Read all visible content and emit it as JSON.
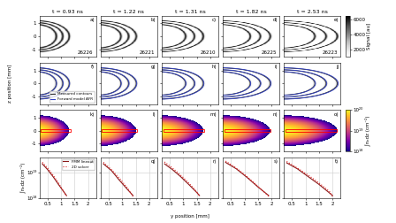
{
  "figure": {
    "xlabel": "y position [mm]",
    "ylabel": "z position [mm]"
  },
  "chart_data": [
    {
      "type": "image",
      "title": "t = 0.93 ns",
      "panel_label": "a)",
      "annotation": "26226",
      "xlim": [
        0.2,
        2.3
      ],
      "ylim": [
        -1.6,
        1.6
      ],
      "xticks": [
        0.5,
        1,
        1.5,
        2
      ],
      "yticks": [
        -1,
        0,
        1
      ],
      "tick_labels": "y"
    },
    {
      "type": "image",
      "title": "t = 1.22 ns",
      "panel_label": "b)",
      "annotation": "26221",
      "xlim": [
        0.2,
        2.3
      ],
      "ylim": [
        -1.6,
        1.6
      ],
      "xticks": [
        0.5,
        1,
        1.5,
        2
      ],
      "yticks": [
        -1,
        0,
        1
      ],
      "tick_labels": false
    },
    {
      "type": "image",
      "title": "t = 1.31 ns",
      "panel_label": "c)",
      "annotation": "26210",
      "xlim": [
        0.2,
        2.3
      ],
      "ylim": [
        -1.6,
        1.6
      ],
      "xticks": [
        0.5,
        1,
        1.5,
        2
      ],
      "yticks": [
        -1,
        0,
        1
      ],
      "tick_labels": false
    },
    {
      "type": "image",
      "title": "t = 1.82 ns",
      "panel_label": "d)",
      "annotation": "26225",
      "xlim": [
        0.2,
        2.3
      ],
      "ylim": [
        -1.6,
        1.6
      ],
      "xticks": [
        0.5,
        1,
        1.5,
        2
      ],
      "yticks": [
        -1,
        0,
        1
      ],
      "tick_labels": false
    },
    {
      "type": "image",
      "title": "t = 2.53 ns",
      "panel_label": "e)",
      "annotation": "26223",
      "xlim": [
        0.2,
        2.3
      ],
      "ylim": [
        -1.6,
        1.6
      ],
      "xticks": [
        0.5,
        1,
        1.5,
        2
      ],
      "yticks": [
        -1,
        0,
        1
      ],
      "tick_labels": false,
      "colorbar": {
        "label": "Signal [au]",
        "range": [
          1000,
          6500
        ],
        "ticks": [
          2000,
          4000,
          6000
        ]
      }
    },
    {
      "type": "contour",
      "panel_label": "f)",
      "xlim": [
        0.2,
        2.3
      ],
      "ylim": [
        -1.6,
        1.6
      ],
      "xticks": [
        0.5,
        1,
        1.5,
        2
      ],
      "yticks": [
        -1,
        0,
        1
      ],
      "tick_labels": "y",
      "legend": "lower right",
      "series": [
        {
          "name": "Measured contours",
          "color": "#333333",
          "line_style": "solid"
        },
        {
          "name": "Forward model AFR",
          "color": "#2f3fc8",
          "line_style": "solid"
        }
      ]
    },
    {
      "type": "contour",
      "panel_label": "g)",
      "xlim": [
        0.2,
        2.3
      ],
      "ylim": [
        -1.6,
        1.6
      ],
      "xticks": [
        0.5,
        1,
        1.5,
        2
      ],
      "yticks": [
        -1,
        0,
        1
      ],
      "tick_labels": false,
      "series": [
        {
          "name": "Measured contours",
          "color": "#333333",
          "line_style": "solid"
        },
        {
          "name": "Forward model AFR",
          "color": "#2f3fc8",
          "line_style": "solid"
        }
      ]
    },
    {
      "type": "contour",
      "panel_label": "h)",
      "xlim": [
        0.2,
        2.3
      ],
      "ylim": [
        -1.6,
        1.6
      ],
      "xticks": [
        0.5,
        1,
        1.5,
        2
      ],
      "yticks": [
        -1,
        0,
        1
      ],
      "tick_labels": false,
      "series": [
        {
          "name": "Measured contours",
          "color": "#333333",
          "line_style": "solid"
        },
        {
          "name": "Forward model AFR",
          "color": "#2f3fc8",
          "line_style": "solid"
        }
      ]
    },
    {
      "type": "contour",
      "panel_label": "i)",
      "xlim": [
        0.2,
        2.3
      ],
      "ylim": [
        -1.6,
        1.6
      ],
      "xticks": [
        0.5,
        1,
        1.5,
        2
      ],
      "yticks": [
        -1,
        0,
        1
      ],
      "tick_labels": false,
      "series": [
        {
          "name": "Measured contours",
          "color": "#333333",
          "line_style": "solid"
        },
        {
          "name": "Forward model AFR",
          "color": "#2f3fc8",
          "line_style": "solid"
        }
      ]
    },
    {
      "type": "contour",
      "panel_label": "j)",
      "xlim": [
        0.2,
        2.3
      ],
      "ylim": [
        -1.6,
        1.6
      ],
      "xticks": [
        0.5,
        1,
        1.5,
        2
      ],
      "yticks": [
        -1,
        0,
        1
      ],
      "tick_labels": false,
      "series": [
        {
          "name": "Measured contours",
          "color": "#333333",
          "line_style": "solid"
        },
        {
          "name": "Forward model AFR",
          "color": "#2f3fc8",
          "line_style": "solid"
        }
      ]
    },
    {
      "type": "map",
      "panel_label": "k)",
      "xlim": [
        0.2,
        2.3
      ],
      "ylim": [
        -1.6,
        1.6
      ],
      "xticks": [
        0.5,
        1,
        1.5,
        2
      ],
      "yticks": [
        -1,
        0,
        1
      ],
      "tick_labels": "y"
    },
    {
      "type": "map",
      "panel_label": "l)",
      "xlim": [
        0.2,
        2.3
      ],
      "ylim": [
        -1.6,
        1.6
      ],
      "xticks": [
        0.5,
        1,
        1.5,
        2
      ],
      "yticks": [
        -1,
        0,
        1
      ],
      "tick_labels": false
    },
    {
      "type": "map",
      "panel_label": "m)",
      "xlim": [
        0.2,
        2.3
      ],
      "ylim": [
        -1.6,
        1.6
      ],
      "xticks": [
        0.5,
        1,
        1.5,
        2
      ],
      "yticks": [
        -1,
        0,
        1
      ],
      "tick_labels": false
    },
    {
      "type": "map",
      "panel_label": "n)",
      "xlim": [
        0.2,
        2.3
      ],
      "ylim": [
        -1.6,
        1.6
      ],
      "xticks": [
        0.5,
        1,
        1.5,
        2
      ],
      "yticks": [
        -1,
        0,
        1
      ],
      "tick_labels": false
    },
    {
      "type": "map",
      "panel_label": "o)",
      "xlim": [
        0.2,
        2.3
      ],
      "ylim": [
        -1.6,
        1.6
      ],
      "xticks": [
        0.5,
        1,
        1.5,
        2
      ],
      "yticks": [
        -1,
        0,
        1
      ],
      "tick_labels": false,
      "colorbar": {
        "label": "∫nₑdz (cm⁻²)",
        "log": true,
        "range": [
          1e+18,
          1e+20
        ],
        "ticks": [
          {
            "value": 1e+18,
            "label": "10¹⁸"
          },
          {
            "value": 1e+19,
            "label": "10¹⁹"
          },
          {
            "value": 1e+20,
            "label": "10²⁰"
          }
        ]
      }
    },
    {
      "type": "line",
      "panel_label": "p)",
      "ylabel": "∫nₑdz (cm⁻²)",
      "log": "y",
      "grid": true,
      "legend": "upper right",
      "xlim": [
        0.2,
        2.3
      ],
      "ylim": [
        1e+18,
        4e+19
      ],
      "xticks": [
        0.5,
        1,
        1.5,
        2
      ],
      "yticks": [
        {
          "value": 1e+18,
          "label": "10¹⁸"
        },
        {
          "value": 1e+19,
          "label": "10¹⁹"
        }
      ],
      "tick_labels": true,
      "x": [
        0.3,
        0.5,
        0.7,
        0.9,
        1.1,
        1.2
      ],
      "series": [
        {
          "name": "FMM lineout",
          "color": "#8b1a1a",
          "line_style": "solid",
          "values": [
            2.2e+19,
            1.3e+19,
            7e+18,
            3.5e+18,
            1.8e+18,
            1.3e+18
          ]
        },
        {
          "name": "2D solver",
          "color": "#e02020",
          "line_style": "dotted",
          "values": [
            2.5e+19,
            1.5e+19,
            8e+18,
            4e+18,
            1.8e+18,
            1.2e+18
          ]
        }
      ]
    },
    {
      "type": "line",
      "panel_label": "q)",
      "log": "y",
      "grid": true,
      "xlim": [
        0.2,
        2.3
      ],
      "ylim": [
        1e+18,
        4e+19
      ],
      "xticks": [
        0.5,
        1,
        1.5,
        2
      ],
      "yticks": [
        {
          "value": 1e+18,
          "label": "10¹⁸"
        },
        {
          "value": 1e+19,
          "label": "10¹⁹"
        }
      ],
      "tick_labels": "x",
      "x": [
        0.3,
        0.6,
        0.9,
        1.2,
        1.4
      ],
      "series": [
        {
          "name": "FMM lineout",
          "color": "#8b1a1a",
          "line_style": "solid",
          "values": [
            2.2e+19,
            1.2e+19,
            5e+18,
            2.2e+18,
            1.3e+18
          ]
        },
        {
          "name": "2D solver",
          "color": "#e02020",
          "line_style": "dotted",
          "values": [
            2.5e+19,
            1.3e+19,
            6e+18,
            2.5e+18,
            1.2e+18
          ]
        }
      ]
    },
    {
      "type": "line",
      "panel_label": "r)",
      "log": "y",
      "grid": true,
      "xlim": [
        0.2,
        2.3
      ],
      "ylim": [
        1e+18,
        4e+19
      ],
      "xticks": [
        0.5,
        1,
        1.5,
        2
      ],
      "yticks": [
        {
          "value": 1e+18,
          "label": "10¹⁸"
        },
        {
          "value": 1e+19,
          "label": "10¹⁹"
        }
      ],
      "tick_labels": "x",
      "x": [
        0.3,
        0.6,
        0.9,
        1.2,
        1.5,
        1.6
      ],
      "series": [
        {
          "name": "FMM lineout",
          "color": "#8b1a1a",
          "line_style": "solid",
          "values": [
            2.2e+19,
            1.3e+19,
            7e+18,
            3.5e+18,
            1.7e+18,
            1.3e+18
          ]
        },
        {
          "name": "2D solver",
          "color": "#e02020",
          "line_style": "dotted",
          "values": [
            2.6e+19,
            1.5e+19,
            8e+18,
            4e+18,
            1.8e+18,
            1.2e+18
          ]
        }
      ]
    },
    {
      "type": "line",
      "panel_label": "s)",
      "log": "y",
      "grid": true,
      "xlim": [
        0.2,
        2.3
      ],
      "ylim": [
        1e+18,
        4e+19
      ],
      "xticks": [
        0.5,
        1,
        1.5,
        2
      ],
      "yticks": [
        {
          "value": 1e+18,
          "label": "10¹⁸"
        },
        {
          "value": 1e+19,
          "label": "10¹⁹"
        }
      ],
      "tick_labels": "x",
      "x": [
        0.3,
        0.7,
        1.1,
        1.5,
        1.9
      ],
      "series": [
        {
          "name": "FMM lineout",
          "color": "#8b1a1a",
          "line_style": "solid",
          "values": [
            2.5e+19,
            1.4e+19,
            6.5e+18,
            2.8e+18,
            1.3e+18
          ]
        },
        {
          "name": "2D solver",
          "color": "#e02020",
          "line_style": "dotted",
          "values": [
            2.8e+19,
            1.5e+19,
            7e+18,
            3e+18,
            1.2e+18
          ]
        }
      ]
    },
    {
      "type": "line",
      "panel_label": "t)",
      "log": "y",
      "grid": true,
      "xlim": [
        0.2,
        2.3
      ],
      "ylim": [
        1e+18,
        4e+19
      ],
      "xticks": [
        0.5,
        1,
        1.5,
        2
      ],
      "yticks": [
        {
          "value": 1e+18,
          "label": "10¹⁸"
        },
        {
          "value": 1e+19,
          "label": "10¹⁹"
        }
      ],
      "tick_labels": "x",
      "x": [
        0.3,
        0.7,
        1.1,
        1.5,
        1.9,
        2.0
      ],
      "series": [
        {
          "name": "FMM lineout",
          "color": "#8b1a1a",
          "line_style": "solid",
          "values": [
            2.4e+19,
            1.4e+19,
            7e+18,
            3.5e+18,
            1.6e+18,
            1.3e+18
          ]
        },
        {
          "name": "2D solver",
          "color": "#e02020",
          "line_style": "dotted",
          "values": [
            2.7e+19,
            1.5e+19,
            8e+18,
            4e+18,
            1.8e+18,
            1.2e+18
          ]
        }
      ]
    }
  ]
}
